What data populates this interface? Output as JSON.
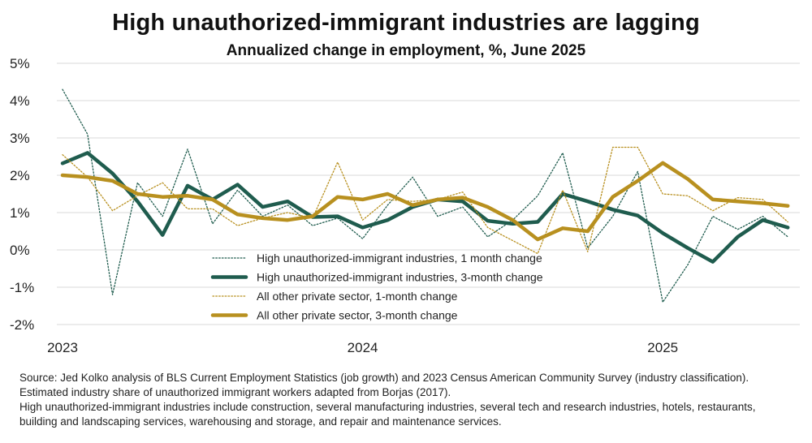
{
  "header": {
    "title": "High unauthorized-immigrant industries are lagging",
    "subtitle": "Annualized change in employment, %, June 2025"
  },
  "colors": {
    "high_unauth": "#1f5c4e",
    "other_private": "#b8901f",
    "grid": "#d9d9d9"
  },
  "chart_data": {
    "type": "line",
    "title": "High unauthorized-immigrant industries are lagging",
    "subtitle": "Annualized change in employment, %, June 2025",
    "xlabel": "",
    "ylabel": "",
    "ylim": [
      -2,
      5
    ],
    "yticks": [
      -2,
      -1,
      0,
      1,
      2,
      3,
      4,
      5
    ],
    "ytick_labels": [
      "-2%",
      "-1%",
      "0%",
      "1%",
      "2%",
      "3%",
      "4%",
      "5%"
    ],
    "x_start_month": "2023-01",
    "x_ticks": [
      {
        "index": 0,
        "label": "2023"
      },
      {
        "index": 12,
        "label": "2024"
      },
      {
        "index": 24,
        "label": "2025"
      }
    ],
    "grid": "horizontal",
    "legend_position": "center",
    "series": [
      {
        "name": "High unauthorized-immigrant industries, 1 month change",
        "style": "dotted-thin",
        "color": "#1f5c4e",
        "values": [
          4.3,
          3.1,
          -1.2,
          1.8,
          0.9,
          2.7,
          0.7,
          1.6,
          0.9,
          1.2,
          0.65,
          0.85,
          0.3,
          1.2,
          1.95,
          0.9,
          1.15,
          0.35,
          0.8,
          1.45,
          2.6,
          0.05,
          0.9,
          2.1,
          -1.4,
          -0.4,
          0.9,
          0.55,
          0.9,
          0.35
        ]
      },
      {
        "name": "High unauthorized-immigrant industries, 3-month change",
        "style": "solid-thick",
        "color": "#1f5c4e",
        "values": [
          2.32,
          2.6,
          2.05,
          1.3,
          0.4,
          1.72,
          1.35,
          1.75,
          1.15,
          1.3,
          0.88,
          0.9,
          0.6,
          0.8,
          1.15,
          1.35,
          1.3,
          0.78,
          0.7,
          0.75,
          1.5,
          1.3,
          1.08,
          0.92,
          0.45,
          0.05,
          -0.32,
          0.35,
          0.8,
          0.6
        ]
      },
      {
        "name": "All other private sector, 1-month change",
        "style": "dotted-thin",
        "color": "#b8901f",
        "values": [
          2.55,
          1.95,
          1.05,
          1.45,
          1.8,
          1.1,
          1.1,
          0.65,
          0.85,
          1.0,
          0.85,
          2.35,
          0.8,
          1.35,
          1.3,
          1.35,
          1.55,
          0.6,
          0.25,
          -0.1,
          1.6,
          -0.05,
          2.75,
          2.75,
          1.5,
          1.45,
          1.05,
          1.4,
          1.35,
          0.75
        ]
      },
      {
        "name": "All other private sector, 3-month change",
        "style": "solid-thick",
        "color": "#b8901f",
        "values": [
          2.0,
          1.95,
          1.85,
          1.5,
          1.42,
          1.45,
          1.35,
          0.95,
          0.85,
          0.8,
          0.9,
          1.42,
          1.35,
          1.5,
          1.2,
          1.35,
          1.4,
          1.15,
          0.8,
          0.28,
          0.58,
          0.5,
          1.42,
          1.85,
          2.33,
          1.9,
          1.35,
          1.3,
          1.25,
          1.18
        ]
      }
    ]
  },
  "source": {
    "line1": "Source: Jed Kolko analysis of BLS Current Employment Statistics (job growth) and 2023 Census American Community Survey (industry classification).",
    "line2": "Estimated industry share of unauthorized immigrant workers adapted from Borjas (2017).",
    "line3": "High unauthorized-immigrant industries include construction, several manufacturing industries, several tech and research industries, hotels, restaurants,",
    "line4": "building and landscaping services, warehousing and storage, and repair and maintenance services."
  }
}
